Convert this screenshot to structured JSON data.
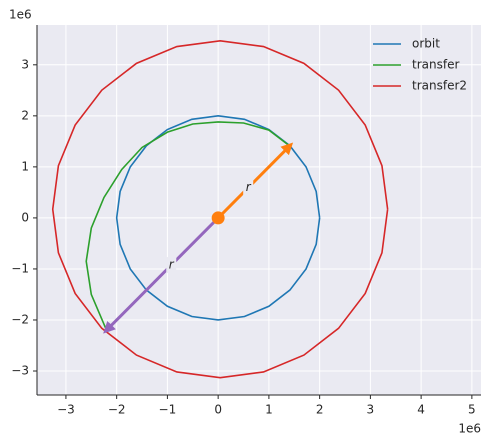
{
  "chart_data": {
    "type": "line",
    "x_offset_label": "1e6",
    "y_offset_label": "1e6",
    "xlim": [
      -3.57,
      5.18
    ],
    "ylim": [
      -3.47,
      3.78
    ],
    "xticks": [
      {
        "value": -3,
        "label": "−3"
      },
      {
        "value": -2,
        "label": "−2"
      },
      {
        "value": -1,
        "label": "−1"
      },
      0,
      1,
      2,
      3,
      4,
      5
    ],
    "yticks": [
      {
        "value": -3,
        "label": "−3"
      },
      {
        "value": -2,
        "label": "−2"
      },
      {
        "value": -1,
        "label": "−1"
      },
      0,
      1,
      2,
      3
    ],
    "grid": true,
    "legend": "upper right",
    "series": [
      {
        "name": "orbit",
        "color": "#1f77b4",
        "x": [
          2,
          1.932,
          1.732,
          1.414,
          1,
          0.518,
          0,
          -0.518,
          -1,
          -1.414,
          -1.732,
          -1.932,
          -2,
          -1.932,
          -1.732,
          -1.414,
          -1,
          -0.518,
          0,
          0.518,
          1,
          1.414,
          1.732,
          1.932,
          2
        ],
        "values": [
          0,
          0.518,
          1,
          1.414,
          1.732,
          1.932,
          2,
          1.932,
          1.732,
          1.414,
          1,
          0.518,
          0,
          -0.518,
          -1,
          -1.414,
          -1.732,
          -1.932,
          -2,
          -1.932,
          -1.732,
          -1.414,
          -1,
          -0.518,
          0
        ]
      },
      {
        "name": "transfer",
        "color": "#2ca02c",
        "x": [
          1.41,
          1.0,
          0.5,
          0,
          -0.5,
          -1.0,
          -1.5,
          -1.9,
          -2.25,
          -2.5,
          -2.6,
          -2.5,
          -2.2
        ],
        "values": [
          1.41,
          1.72,
          1.86,
          1.88,
          1.84,
          1.68,
          1.38,
          0.95,
          0.4,
          -0.2,
          -0.85,
          -1.5,
          -2.2
        ]
      },
      {
        "name": "transfer2",
        "color": "#d62728",
        "x": [
          3.34,
          3.228,
          2.898,
          2.373,
          1.69,
          0.894,
          0.04,
          -0.814,
          -1.61,
          -2.293,
          -2.818,
          -3.148,
          -3.26,
          -3.148,
          -2.818,
          -2.293,
          -1.61,
          -0.814,
          0.04,
          0.894,
          1.69,
          2.373,
          2.898,
          3.228,
          3.34
        ],
        "values": [
          0.17,
          1.024,
          1.82,
          2.503,
          3.028,
          3.358,
          3.47,
          3.358,
          3.028,
          2.503,
          1.82,
          1.024,
          0.17,
          -0.684,
          -1.48,
          -2.163,
          -2.688,
          -3.018,
          -3.13,
          -3.018,
          -2.688,
          -2.163,
          -1.48,
          -0.684,
          0.17
        ]
      }
    ],
    "arrows": [
      {
        "label": "r",
        "color": "#ff7f0e",
        "x": [
          0,
          1.41
        ],
        "y": [
          0,
          1.41
        ]
      },
      {
        "label": "r",
        "color": "#9467bd",
        "x": [
          0,
          -2.2
        ],
        "y": [
          0,
          -2.2
        ]
      }
    ],
    "points": [
      {
        "x": 0,
        "y": 0,
        "color": "#ff7f0e"
      }
    ]
  }
}
